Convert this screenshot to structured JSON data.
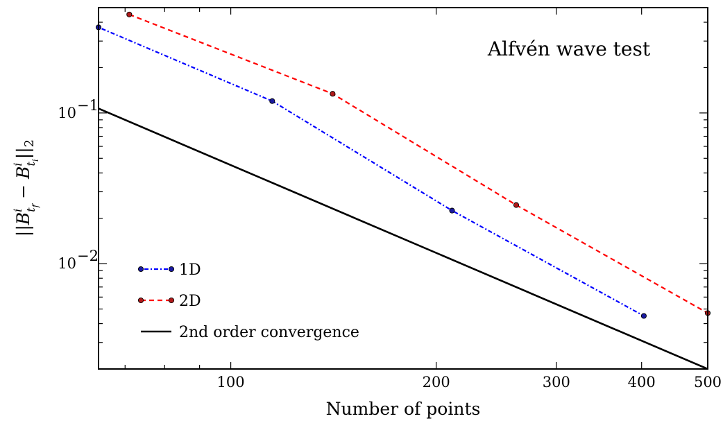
{
  "chart_data": {
    "type": "line",
    "x_scale": "log",
    "y_scale": "log",
    "xlim": [
      64,
      500
    ],
    "ylim": [
      0.002,
      0.5
    ],
    "grid": false,
    "legend_position": "bottom-left",
    "xlabel": "Number of points",
    "ylabel": "||B^i_{t_f} − B^i_{t_i}||_2",
    "annotation": "Alfvén wave test",
    "x_ticks": [
      {
        "value": 100,
        "label": "100"
      },
      {
        "value": 200,
        "label": "200"
      },
      {
        "value": 300,
        "label": "300"
      },
      {
        "value": 400,
        "label": "400"
      },
      {
        "value": 500,
        "label": "500"
      }
    ],
    "y_ticks": [
      {
        "value": 0.1,
        "label": "10",
        "exp": "−1"
      },
      {
        "value": 0.01,
        "label": "10",
        "exp": "−2"
      }
    ],
    "series": [
      {
        "name": "1D",
        "color": "#0000ff",
        "marker_fill": "#1a1aa0",
        "dash": "2,3,6,3",
        "x": [
          64,
          115,
          211,
          403
        ],
        "y": [
          0.37,
          0.12,
          0.0225,
          0.0045
        ]
      },
      {
        "name": "2D",
        "color": "#ff0000",
        "marker_fill": "#b01a1a",
        "dash": "7,5",
        "x": [
          71,
          141,
          262,
          500
        ],
        "y": [
          0.45,
          0.134,
          0.0245,
          0.0047
        ]
      },
      {
        "name": "2nd order convergence",
        "color": "#000000",
        "dash": "",
        "x": [
          64,
          500
        ],
        "y": [
          0.107,
          0.002
        ]
      }
    ],
    "markers_on": [
      "1D",
      "2D"
    ]
  }
}
